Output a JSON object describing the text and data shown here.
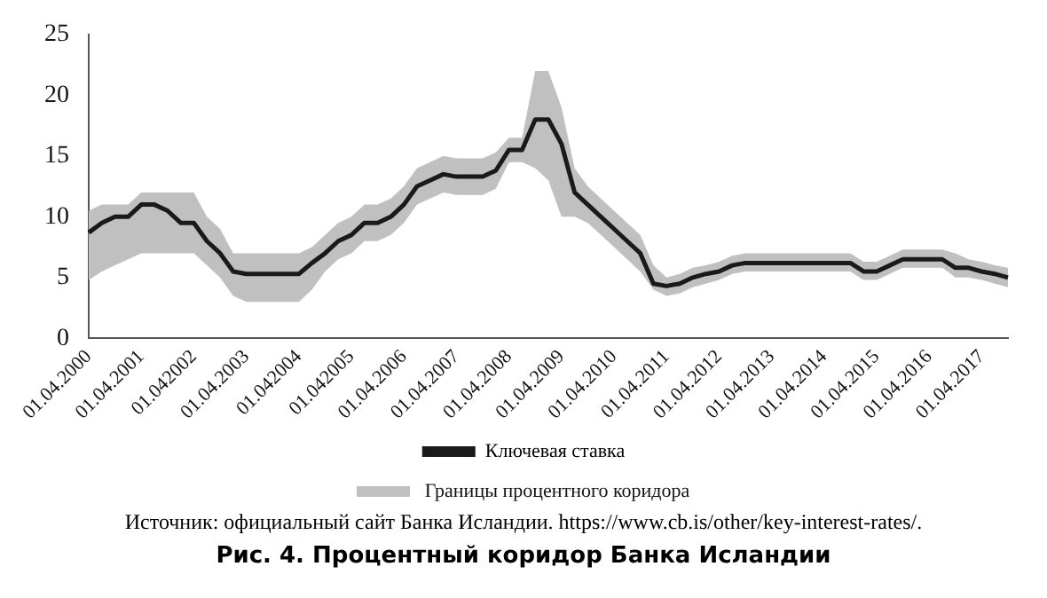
{
  "chart_data": {
    "type": "line",
    "categories": [
      "01.04.2000",
      null,
      null,
      null,
      "01.04.2001",
      null,
      null,
      null,
      "01.042002",
      null,
      null,
      null,
      "01.04.2003",
      null,
      null,
      null,
      "01.042004",
      null,
      null,
      null,
      "01.042005",
      null,
      null,
      null,
      "01.04.2006",
      null,
      null,
      null,
      "01.04.2007",
      null,
      null,
      null,
      "01.04.2008",
      null,
      null,
      null,
      "01.04.2009",
      null,
      null,
      null,
      "01.04.2010",
      null,
      null,
      null,
      "01.04.2011",
      null,
      null,
      null,
      "01.04.2012",
      null,
      null,
      null,
      "01.04.2013",
      null,
      null,
      null,
      "01.04.2014",
      null,
      null,
      null,
      "01.04.2015",
      null,
      null,
      null,
      "01.04.2016",
      null,
      null,
      null,
      "01.04.2017",
      null,
      null
    ],
    "series": [
      {
        "name": "Ключевая ставка",
        "type": "line",
        "color": "#1a1a1a",
        "values": [
          8.7,
          9.5,
          10,
          10,
          11,
          11,
          10.5,
          9.5,
          9.5,
          8,
          7,
          5.5,
          5.3,
          5.3,
          5.3,
          5.3,
          5.3,
          6.2,
          7,
          8,
          8.5,
          9.5,
          9.5,
          10,
          11,
          12.5,
          13,
          13.5,
          13.3,
          13.3,
          13.3,
          13.8,
          15.5,
          15.5,
          18,
          18,
          16,
          12,
          11,
          10,
          9,
          8,
          7,
          4.5,
          4.3,
          4.5,
          5,
          5.3,
          5.5,
          6,
          6.2,
          6.2,
          6.2,
          6.2,
          6.2,
          6.2,
          6.2,
          6.2,
          6.2,
          5.5,
          5.5,
          6,
          6.5,
          6.5,
          6.5,
          6.5,
          5.8,
          5.8,
          5.5,
          5.3,
          5
        ],
        "lower": [
          4.8,
          5.5,
          6,
          6.5,
          7,
          7,
          7,
          7,
          7,
          6,
          5,
          3.5,
          3,
          3,
          3,
          3,
          3,
          4,
          5.5,
          6.5,
          7,
          8,
          8,
          8.5,
          9.5,
          11,
          11.5,
          12,
          11.8,
          11.8,
          11.8,
          12.3,
          14.5,
          14.5,
          14,
          13,
          10,
          10,
          9.5,
          8.5,
          7.5,
          6.5,
          5.5,
          4,
          3.5,
          3.7,
          4.2,
          4.5,
          4.8,
          5.3,
          5.5,
          5.5,
          5.5,
          5.5,
          5.5,
          5.5,
          5.5,
          5.5,
          5.5,
          4.8,
          4.8,
          5.3,
          5.8,
          5.8,
          5.8,
          5.8,
          5,
          5,
          4.8,
          4.5,
          4.2
        ],
        "upper": [
          10.5,
          11,
          11,
          11,
          12,
          12,
          12,
          12,
          12,
          10,
          9,
          7,
          7,
          7,
          7,
          7,
          7,
          7.5,
          8.5,
          9.5,
          10,
          11,
          11,
          11.5,
          12.5,
          14,
          14.5,
          15,
          14.8,
          14.8,
          14.8,
          15.3,
          16.5,
          16.5,
          22,
          22,
          19,
          14,
          12.5,
          11.5,
          10.5,
          9.5,
          8.5,
          6,
          5,
          5.3,
          5.8,
          6,
          6.3,
          6.8,
          7,
          7,
          7,
          7,
          7,
          7,
          7,
          7,
          7,
          6.3,
          6.3,
          6.8,
          7.3,
          7.3,
          7.3,
          7.3,
          7,
          6.5,
          6.3,
          6,
          5.8
        ]
      }
    ],
    "ylim": [
      0,
      25
    ],
    "yticks": [
      0,
      5,
      10,
      15,
      20,
      25
    ],
    "grid": false,
    "legend": "bottom",
    "title": "Рис. 4. Процентный коридор Банка Исландии",
    "annotations": [
      "Границы процентного коридора",
      "Источник: официальный сайт Банка Исландии. https://www.cb.is/other/key-interest-rates/."
    ]
  }
}
